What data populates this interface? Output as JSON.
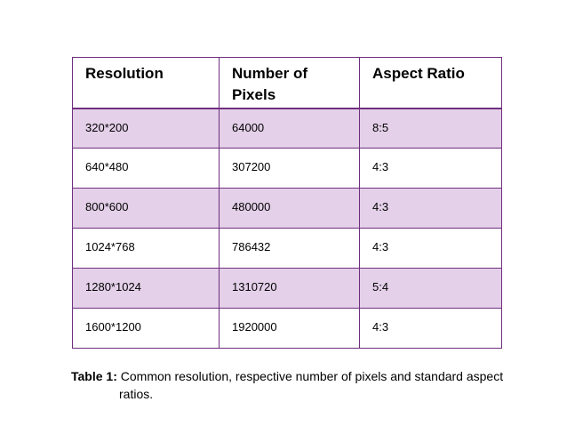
{
  "table": {
    "headers": [
      "Resolution",
      "Number of Pixels",
      "Aspect Ratio"
    ],
    "header_line_breaks": {
      "number_of_pixels_line1": "Number of",
      "number_of_pixels_line2": "Pixels"
    },
    "rows": [
      [
        "320*200",
        "64000",
        "8:5"
      ],
      [
        "640*480",
        "307200",
        "4:3"
      ],
      [
        "800*600",
        "480000",
        "4:3"
      ],
      [
        "1024*768",
        "786432",
        "4:3"
      ],
      [
        "1280*1024",
        "1310720",
        "5:4"
      ],
      [
        "1600*1200",
        "1920000",
        "4:3"
      ]
    ]
  },
  "caption": {
    "label": "Table 1:",
    "text_line1": " Common resolution, respective number of pixels and standard aspect",
    "text_line2": "ratios."
  },
  "colors": {
    "border": "#6f2f7f",
    "shaded_row": "#e4d0e9"
  }
}
